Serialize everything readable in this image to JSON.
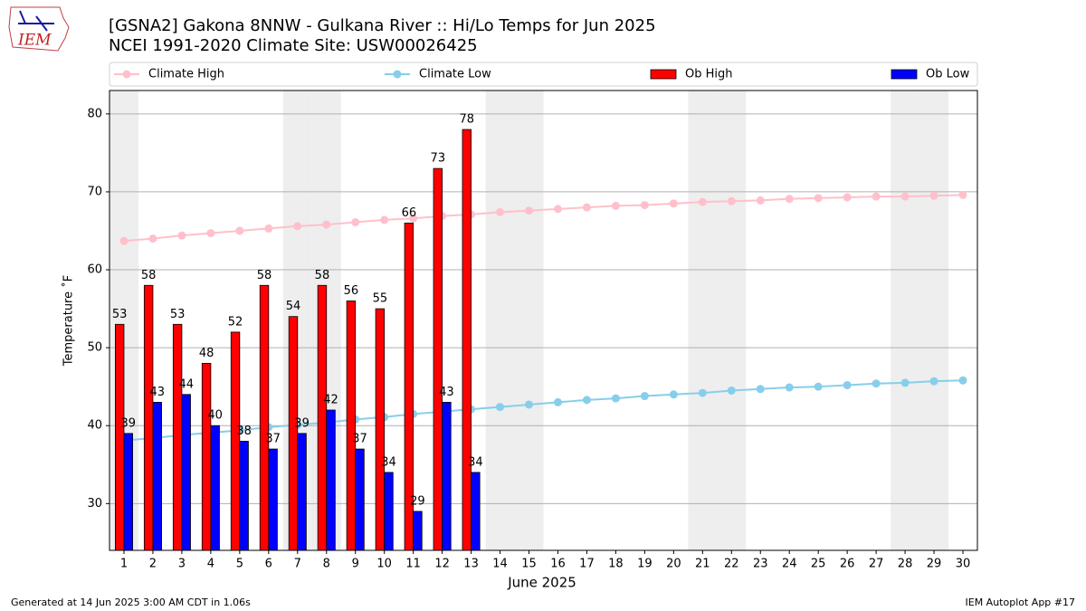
{
  "logo": "IEM",
  "footer_left": "Generated at 14 Jun 2025 3:00 AM CDT in 1.06s",
  "footer_right": "IEM Autoplot App #17",
  "chart_data": {
    "type": "bar",
    "title": [
      "[GSNA2] Gakona 8NNW - Gulkana River :: Hi/Lo Temps for Jun 2025",
      "NCEI 1991-2020 Climate Site: USW00026425"
    ],
    "ylabel": "Temperature ˚F",
    "xlabel": "June 2025",
    "x": [
      1,
      2,
      3,
      4,
      5,
      6,
      7,
      8,
      9,
      10,
      11,
      12,
      13,
      14,
      15,
      16,
      17,
      18,
      19,
      20,
      21,
      22,
      23,
      24,
      25,
      26,
      27,
      28,
      29,
      30
    ],
    "xlim": [
      0.5,
      30.5
    ],
    "xticks": [
      1,
      2,
      3,
      4,
      5,
      6,
      7,
      8,
      9,
      10,
      11,
      12,
      13,
      14,
      15,
      16,
      17,
      18,
      19,
      20,
      21,
      22,
      23,
      24,
      25,
      26,
      27,
      28,
      29,
      30
    ],
    "ylim": [
      24,
      83
    ],
    "yticks": [
      30,
      40,
      50,
      60,
      70,
      80
    ],
    "grid": true,
    "shaded_days": [
      1,
      7,
      8,
      14,
      15,
      21,
      22,
      28,
      29
    ],
    "series": [
      {
        "name": "Climate High",
        "type": "line",
        "color": "#ffc0cb",
        "values": [
          63.7,
          64.0,
          64.4,
          64.7,
          65.0,
          65.3,
          65.6,
          65.8,
          66.1,
          66.4,
          66.6,
          66.9,
          67.1,
          67.4,
          67.6,
          67.8,
          68.0,
          68.2,
          68.3,
          68.5,
          68.7,
          68.8,
          68.9,
          69.1,
          69.2,
          69.3,
          69.4,
          69.4,
          69.5,
          69.6
        ]
      },
      {
        "name": "Climate Low",
        "type": "line",
        "color": "#87ceeb",
        "values": [
          38.1,
          38.4,
          38.8,
          39.1,
          39.4,
          39.8,
          40.1,
          40.4,
          40.8,
          41.1,
          41.5,
          41.8,
          42.1,
          42.4,
          42.7,
          43.0,
          43.3,
          43.5,
          43.8,
          44.0,
          44.2,
          44.5,
          44.7,
          44.9,
          45.0,
          45.2,
          45.4,
          45.5,
          45.7,
          45.8
        ]
      },
      {
        "name": "Ob High",
        "type": "bar",
        "color": "#ff0000",
        "values": [
          53,
          58,
          53,
          48,
          52,
          58,
          54,
          58,
          56,
          55,
          66,
          73,
          78,
          null,
          null,
          null,
          null,
          null,
          null,
          null,
          null,
          null,
          null,
          null,
          null,
          null,
          null,
          null,
          null,
          null
        ]
      },
      {
        "name": "Ob Low",
        "type": "bar",
        "color": "#0000ff",
        "values": [
          39,
          43,
          44,
          40,
          38,
          37,
          39,
          42,
          37,
          34,
          29,
          43,
          34,
          null,
          null,
          null,
          null,
          null,
          null,
          null,
          null,
          null,
          null,
          null,
          null,
          null,
          null,
          null,
          null,
          null
        ]
      }
    ]
  }
}
